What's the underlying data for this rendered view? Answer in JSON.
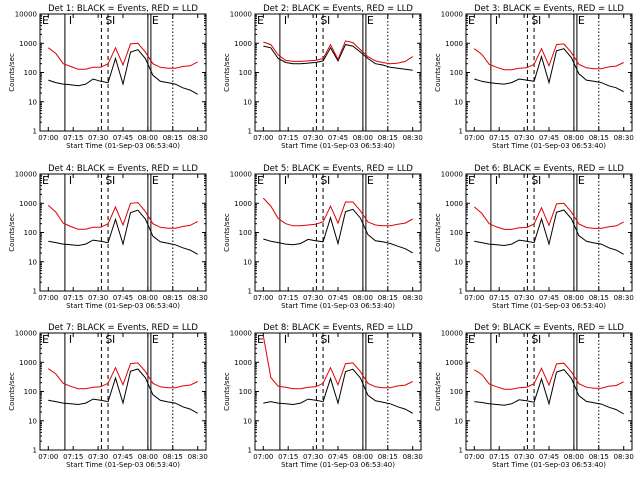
{
  "figure": {
    "x_start_label": "Start Time (01-Sep-03 06:53:40)",
    "x_ticks": [
      "07:00",
      "07:15",
      "07:30",
      "07:45",
      "08:00",
      "08:15",
      "08:30"
    ],
    "y_ticks": [
      "1",
      "10",
      "100",
      "1000",
      "10000"
    ],
    "y_label": "Counts/sec",
    "colors": {
      "events": "#000000",
      "lld": "#e00000"
    }
  },
  "chart_data": [
    {
      "type": "line",
      "title": "Det 1: BLACK = Events, RED = LLD",
      "xlabel": "Start Time (01-Sep-03 06:53:40)",
      "ylabel": "Counts/sec",
      "yscale": "log",
      "ylim": [
        1,
        10000
      ],
      "x_range": [
        "06:55",
        "08:35"
      ],
      "markers": [
        "E",
        "I",
        "S",
        "I",
        "E"
      ],
      "series": [
        {
          "name": "Events",
          "values": [
            55,
            45,
            40,
            38,
            35,
            40,
            60,
            50,
            45,
            300,
            40,
            500,
            600,
            300,
            80,
            50,
            45,
            40,
            30,
            25,
            18
          ]
        },
        {
          "name": "LLD",
          "values": [
            700,
            450,
            200,
            160,
            130,
            130,
            150,
            150,
            200,
            700,
            180,
            950,
            1000,
            500,
            200,
            150,
            140,
            140,
            160,
            170,
            230
          ]
        }
      ]
    },
    {
      "type": "line",
      "title": "Det 2: BLACK = Events, RED = LLD",
      "xlabel": "Start Time (01-Sep-03 06:53:40)",
      "ylabel": "Counts/sec",
      "yscale": "log",
      "ylim": [
        1,
        10000
      ],
      "x_range": [
        "06:55",
        "08:35"
      ],
      "markers": [
        "E",
        "I",
        "S",
        "I",
        "E"
      ],
      "series": [
        {
          "name": "Events",
          "values": [
            800,
            700,
            300,
            220,
            200,
            200,
            210,
            220,
            250,
            700,
            250,
            900,
            800,
            500,
            300,
            200,
            180,
            150,
            140,
            130,
            120
          ]
        },
        {
          "name": "LLD",
          "values": [
            1100,
            900,
            400,
            260,
            240,
            240,
            250,
            260,
            300,
            900,
            280,
            1200,
            1050,
            600,
            350,
            250,
            220,
            200,
            210,
            240,
            350
          ]
        }
      ]
    },
    {
      "type": "line",
      "title": "Det 3: BLACK = Events, RED = LLD",
      "xlabel": "Start Time (01-Sep-03 06:53:40)",
      "ylabel": "Counts/sec",
      "yscale": "log",
      "ylim": [
        1,
        10000
      ],
      "x_range": [
        "06:55",
        "08:35"
      ],
      "markers": [
        "E",
        "I",
        "S",
        "I",
        "E"
      ],
      "series": [
        {
          "name": "Events",
          "values": [
            60,
            50,
            45,
            42,
            40,
            45,
            60,
            55,
            50,
            350,
            45,
            550,
            650,
            320,
            90,
            55,
            50,
            45,
            35,
            30,
            22
          ]
        },
        {
          "name": "LLD",
          "values": [
            650,
            420,
            190,
            150,
            125,
            125,
            140,
            145,
            190,
            650,
            170,
            900,
            950,
            480,
            190,
            145,
            135,
            135,
            155,
            165,
            220
          ]
        }
      ]
    },
    {
      "type": "line",
      "title": "Det 4: BLACK = Events, RED = LLD",
      "xlabel": "Start Time (01-Sep-03 06:53:40)",
      "ylabel": "Counts/sec",
      "yscale": "log",
      "ylim": [
        1,
        10000
      ],
      "x_range": [
        "06:55",
        "08:35"
      ],
      "markers": [
        "E",
        "I",
        "S",
        "I",
        "E"
      ],
      "series": [
        {
          "name": "Events",
          "values": [
            50,
            45,
            40,
            38,
            36,
            40,
            55,
            50,
            45,
            280,
            40,
            480,
            580,
            290,
            75,
            48,
            43,
            38,
            30,
            25,
            18
          ]
        },
        {
          "name": "LLD",
          "values": [
            850,
            500,
            210,
            160,
            130,
            130,
            150,
            150,
            200,
            750,
            180,
            1000,
            1050,
            520,
            200,
            150,
            140,
            140,
            160,
            175,
            240
          ]
        }
      ]
    },
    {
      "type": "line",
      "title": "Det 5: BLACK = Events, RED = LLD",
      "xlabel": "Start Time (01-Sep-03 06:53:40)",
      "ylabel": "Counts/sec",
      "yscale": "log",
      "ylim": [
        1,
        10000
      ],
      "x_range": [
        "06:55",
        "08:35"
      ],
      "markers": [
        "E",
        "I",
        "S",
        "I",
        "E"
      ],
      "series": [
        {
          "name": "Events",
          "values": [
            60,
            50,
            45,
            40,
            38,
            42,
            58,
            52,
            48,
            320,
            42,
            520,
            620,
            310,
            85,
            52,
            48,
            42,
            34,
            28,
            20
          ]
        },
        {
          "name": "LLD",
          "values": [
            1500,
            800,
            300,
            200,
            170,
            170,
            180,
            190,
            230,
            800,
            210,
            1100,
            1100,
            550,
            230,
            180,
            170,
            170,
            190,
            210,
            290
          ]
        }
      ]
    },
    {
      "type": "line",
      "title": "Det 6: BLACK = Events, RED = LLD",
      "xlabel": "Start Time (01-Sep-03 06:53:40)",
      "ylabel": "Counts/sec",
      "yscale": "log",
      "ylim": [
        1,
        10000
      ],
      "x_range": [
        "06:55",
        "08:35"
      ],
      "markers": [
        "E",
        "I",
        "S",
        "I",
        "E"
      ],
      "series": [
        {
          "name": "Events",
          "values": [
            50,
            45,
            40,
            38,
            36,
            40,
            55,
            50,
            45,
            290,
            40,
            490,
            590,
            295,
            78,
            50,
            44,
            40,
            30,
            25,
            18
          ]
        },
        {
          "name": "LLD",
          "values": [
            750,
            450,
            200,
            155,
            128,
            128,
            145,
            148,
            195,
            700,
            175,
            950,
            1000,
            500,
            195,
            148,
            138,
            138,
            158,
            168,
            230
          ]
        }
      ]
    },
    {
      "type": "line",
      "title": "Det 7: BLACK = Events, RED = LLD",
      "xlabel": "Start Time (01-Sep-03 06:53:40)",
      "ylabel": "Counts/sec",
      "yscale": "log",
      "ylim": [
        1,
        10000
      ],
      "x_range": [
        "06:55",
        "08:35"
      ],
      "markers": [
        "E",
        "I",
        "S",
        "I",
        "E"
      ],
      "series": [
        {
          "name": "Events",
          "values": [
            50,
            45,
            40,
            38,
            36,
            40,
            55,
            50,
            45,
            290,
            40,
            490,
            590,
            295,
            78,
            50,
            44,
            40,
            30,
            25,
            18
          ]
        },
        {
          "name": "LLD",
          "values": [
            600,
            400,
            190,
            150,
            125,
            125,
            140,
            145,
            190,
            650,
            170,
            900,
            950,
            480,
            190,
            145,
            135,
            135,
            155,
            165,
            220
          ]
        }
      ]
    },
    {
      "type": "line",
      "title": "Det 8: BLACK = Events, RED = LLD",
      "xlabel": "Start Time (01-Sep-03 06:53:40)",
      "ylabel": "Counts/sec",
      "yscale": "log",
      "ylim": [
        1,
        10000
      ],
      "x_range": [
        "06:55",
        "08:35"
      ],
      "markers": [
        "E",
        "I",
        "S",
        "I",
        "E"
      ],
      "series": [
        {
          "name": "Events",
          "values": [
            40,
            45,
            40,
            38,
            36,
            40,
            55,
            50,
            45,
            280,
            40,
            480,
            580,
            290,
            75,
            48,
            43,
            38,
            30,
            25,
            18
          ]
        },
        {
          "name": "LLD",
          "values": [
            8000,
            300,
            150,
            140,
            125,
            125,
            140,
            145,
            190,
            650,
            170,
            900,
            950,
            480,
            190,
            145,
            135,
            135,
            155,
            165,
            220
          ]
        }
      ]
    },
    {
      "type": "line",
      "title": "Det 9: BLACK = Events, RED = LLD",
      "xlabel": "Start Time (01-Sep-03 06:53:40)",
      "ylabel": "Counts/sec",
      "yscale": "log",
      "ylim": [
        1,
        10000
      ],
      "x_range": [
        "06:55",
        "08:35"
      ],
      "markers": [
        "E",
        "I",
        "S",
        "I",
        "E"
      ],
      "series": [
        {
          "name": "Events",
          "values": [
            45,
            42,
            38,
            36,
            34,
            38,
            52,
            48,
            43,
            270,
            38,
            460,
            560,
            280,
            72,
            46,
            41,
            37,
            29,
            24,
            17
          ]
        },
        {
          "name": "LLD",
          "values": [
            550,
            380,
            180,
            145,
            120,
            120,
            135,
            140,
            185,
            620,
            165,
            880,
            930,
            470,
            185,
            140,
            130,
            130,
            150,
            160,
            215
          ]
        }
      ]
    }
  ]
}
